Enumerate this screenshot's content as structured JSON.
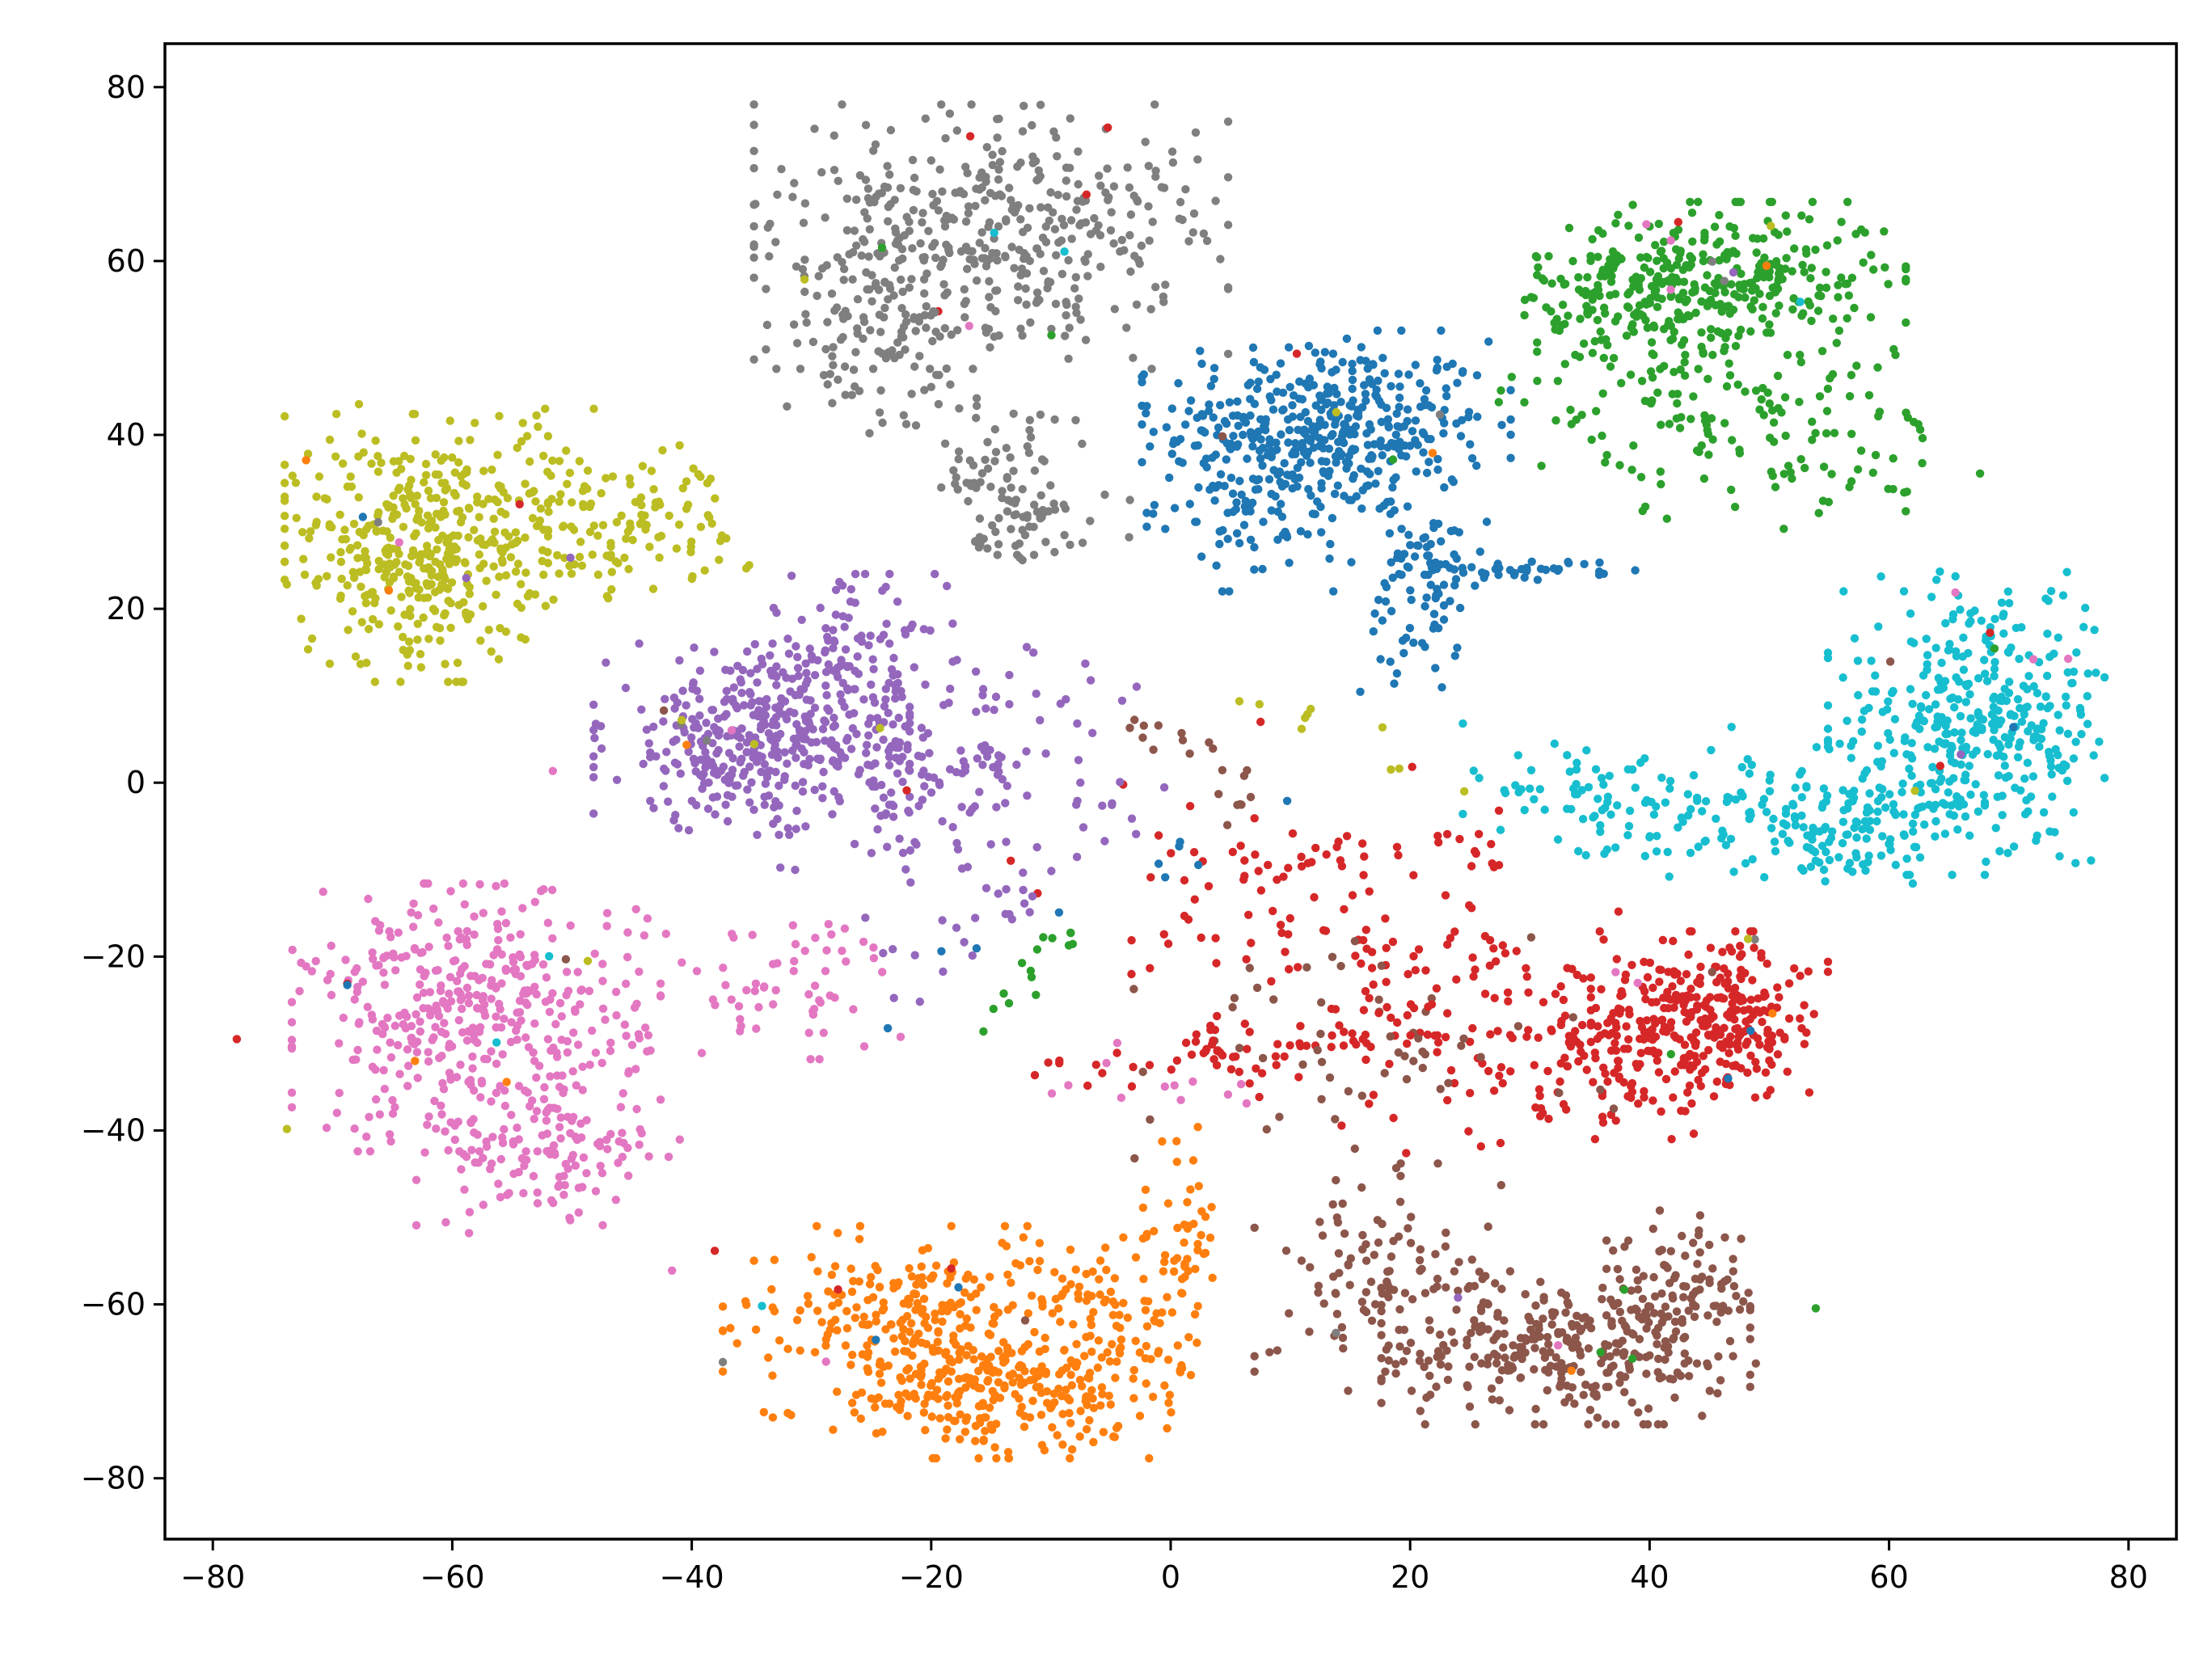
{
  "chart_data": {
    "type": "scatter",
    "title": "",
    "xlabel": "",
    "ylabel": "",
    "xlim": [
      -84,
      84
    ],
    "ylim": [
      -87,
      85
    ],
    "xticks": [
      -80,
      -60,
      -40,
      -20,
      0,
      20,
      40,
      60,
      80
    ],
    "yticks": [
      -80,
      -60,
      -40,
      -20,
      0,
      20,
      40,
      60,
      80
    ],
    "xtick_labels": [
      "−80",
      "−60",
      "−40",
      "−20",
      "0",
      "20",
      "40",
      "60",
      "80"
    ],
    "ytick_labels": [
      "−80",
      "−60",
      "−40",
      "−20",
      "0",
      "20",
      "40",
      "60",
      "80"
    ],
    "grid": false,
    "legend": "none",
    "colors": {
      "blue": "#1f77b4",
      "orange": "#ff7f0e",
      "green": "#2ca02c",
      "red": "#d62728",
      "purple": "#9467bd",
      "brown": "#8c564b",
      "pink": "#e377c2",
      "gray": "#7f7f7f",
      "olive": "#bcbd22",
      "cyan": "#17becf"
    },
    "clusters": [
      {
        "color": "blue",
        "count": 620,
        "blobs": [
          {
            "cx": 13,
            "cy": 41,
            "sx": 7,
            "sy": 5,
            "w": 0.6
          },
          {
            "cx": 9,
            "cy": 33,
            "sx": 5,
            "sy": 5,
            "w": 0.2
          },
          {
            "cx": 22,
            "cy": 26,
            "sx": 2,
            "sy": 3,
            "w": 0.08
          },
          {
            "cx": 20,
            "cy": 18,
            "sx": 2,
            "sy": 4,
            "w": 0.06
          },
          {
            "cx": 30,
            "cy": 24.5,
            "sx": 4,
            "sy": 0.6,
            "w": 0.06
          }
        ]
      },
      {
        "color": "orange",
        "count": 620,
        "blobs": [
          {
            "cx": -22,
            "cy": -62,
            "sx": 7,
            "sy": 5,
            "w": 0.4
          },
          {
            "cx": -15,
            "cy": -70,
            "sx": 6,
            "sy": 3.5,
            "w": 0.35
          },
          {
            "cx": -5,
            "cy": -62,
            "sx": 3,
            "sy": 6,
            "w": 0.15
          },
          {
            "cx": 1,
            "cy": -55,
            "sx": 1.5,
            "sy": 7,
            "w": 0.1
          }
        ]
      },
      {
        "color": "green",
        "count": 560,
        "blobs": [
          {
            "cx": 46,
            "cy": 58,
            "sx": 7,
            "sy": 4,
            "w": 0.55
          },
          {
            "cx": 37,
            "cy": 55,
            "sx": 4,
            "sy": 4,
            "w": 0.15
          },
          {
            "cx": 45,
            "cy": 45,
            "sx": 8,
            "sy": 5,
            "w": 0.2
          },
          {
            "cx": 50,
            "cy": 38,
            "sx": 8,
            "sy": 4,
            "w": 0.1
          }
        ]
      },
      {
        "color": "red",
        "count": 560,
        "blobs": [
          {
            "cx": 45,
            "cy": -27,
            "sx": 4.5,
            "sy": 4.5,
            "w": 0.5
          },
          {
            "cx": 36,
            "cy": -30,
            "sx": 5,
            "sy": 5,
            "w": 0.25
          },
          {
            "cx": 22,
            "cy": -25,
            "sx": 7,
            "sy": 8,
            "w": 0.15
          },
          {
            "cx": 5,
            "cy": -15,
            "sx": 10,
            "sy": 10,
            "w": 0.1
          }
        ]
      },
      {
        "color": "purple",
        "count": 620,
        "blobs": [
          {
            "cx": -35,
            "cy": 5,
            "sx": 6,
            "sy": 5,
            "w": 0.55
          },
          {
            "cx": -27,
            "cy": 13,
            "sx": 4,
            "sy": 5,
            "w": 0.2
          },
          {
            "cx": -22,
            "cy": 2,
            "sx": 5,
            "sy": 4,
            "w": 0.13
          },
          {
            "cx": -15,
            "cy": -2,
            "sx": 8,
            "sy": 8,
            "w": 0.12
          }
        ]
      },
      {
        "color": "brown",
        "count": 560,
        "blobs": [
          {
            "cx": 33,
            "cy": -65,
            "sx": 7,
            "sy": 4,
            "w": 0.55
          },
          {
            "cx": 43,
            "cy": -58,
            "sx": 3,
            "sy": 4,
            "w": 0.15
          },
          {
            "cx": 18,
            "cy": -57,
            "sx": 5,
            "sy": 6,
            "w": 0.2
          },
          {
            "cx": 15,
            "cy": -30,
            "sx": 10,
            "sy": 6,
            "w": 0.1
          }
        ]
      },
      {
        "color": "pink",
        "count": 600,
        "blobs": [
          {
            "cx": -58,
            "cy": -27,
            "sx": 7,
            "sy": 7,
            "w": 0.7
          },
          {
            "cx": -52,
            "cy": -43,
            "sx": 5,
            "sy": 4,
            "w": 0.2
          },
          {
            "cx": -32,
            "cy": -23,
            "sx": 5,
            "sy": 4,
            "w": 0.1
          }
        ]
      },
      {
        "color": "gray",
        "count": 620,
        "blobs": [
          {
            "cx": -15,
            "cy": 63,
            "sx": 9,
            "sy": 7,
            "w": 0.7
          },
          {
            "cx": -25,
            "cy": 50,
            "sx": 4,
            "sy": 5,
            "w": 0.15
          },
          {
            "cx": -14,
            "cy": 35,
            "sx": 3,
            "sy": 4,
            "w": 0.1
          },
          {
            "cx": -10,
            "cy": 30,
            "sx": 3,
            "sy": 2,
            "w": 0.05
          }
        ]
      },
      {
        "color": "olive",
        "count": 560,
        "blobs": [
          {
            "cx": -63,
            "cy": 27,
            "sx": 5,
            "sy": 7,
            "w": 0.7
          },
          {
            "cx": -53,
            "cy": 32,
            "sx": 4,
            "sy": 5,
            "w": 0.15
          },
          {
            "cx": -44,
            "cy": 30,
            "sx": 4,
            "sy": 4,
            "w": 0.15
          }
        ]
      },
      {
        "color": "cyan",
        "count": 620,
        "blobs": [
          {
            "cx": 67,
            "cy": 7,
            "sx": 5.5,
            "sy": 8,
            "w": 0.6
          },
          {
            "cx": 57,
            "cy": -5,
            "sx": 5,
            "sy": 3,
            "w": 0.2
          },
          {
            "cx": 42,
            "cy": -2,
            "sx": 8,
            "sy": 4,
            "w": 0.2
          }
        ]
      }
    ],
    "bridges": [
      {
        "color": "red",
        "x0": -10,
        "y0": -33,
        "x1": 24,
        "y1": -27,
        "n": 50
      },
      {
        "color": "red",
        "x0": 5,
        "y0": -10,
        "x1": 28,
        "y1": -7,
        "n": 30
      },
      {
        "color": "red",
        "x0": 0,
        "y0": -28,
        "x1": 8,
        "y1": -35,
        "n": 20
      },
      {
        "color": "purple",
        "x0": -25,
        "y0": -10,
        "x1": -8,
        "y1": 15,
        "n": 25
      },
      {
        "color": "purple",
        "x0": -22,
        "y0": -24,
        "x1": -12,
        "y1": -13,
        "n": 15
      },
      {
        "color": "gray",
        "x0": -20,
        "y0": 40,
        "x1": -10,
        "y1": 30,
        "n": 15
      },
      {
        "color": "brown",
        "x0": -5,
        "y0": 10,
        "x1": 10,
        "y1": -5,
        "n": 20
      },
      {
        "color": "green",
        "x0": -15,
        "y0": -27,
        "x1": -8,
        "y1": -17,
        "n": 15
      },
      {
        "color": "pink",
        "x0": -10,
        "y0": -34,
        "x1": 5,
        "y1": -36,
        "n": 12
      },
      {
        "color": "cyan",
        "x0": 26,
        "y0": 1,
        "x1": 36,
        "y1": -3,
        "n": 12
      },
      {
        "color": "olive",
        "x0": 8,
        "y0": 10,
        "x1": 22,
        "y1": 2,
        "n": 10
      },
      {
        "color": "blue",
        "x0": -27,
        "y0": -27,
        "x1": 18,
        "y1": 5,
        "n": 10
      }
    ],
    "outliers_per_cluster": 10
  }
}
